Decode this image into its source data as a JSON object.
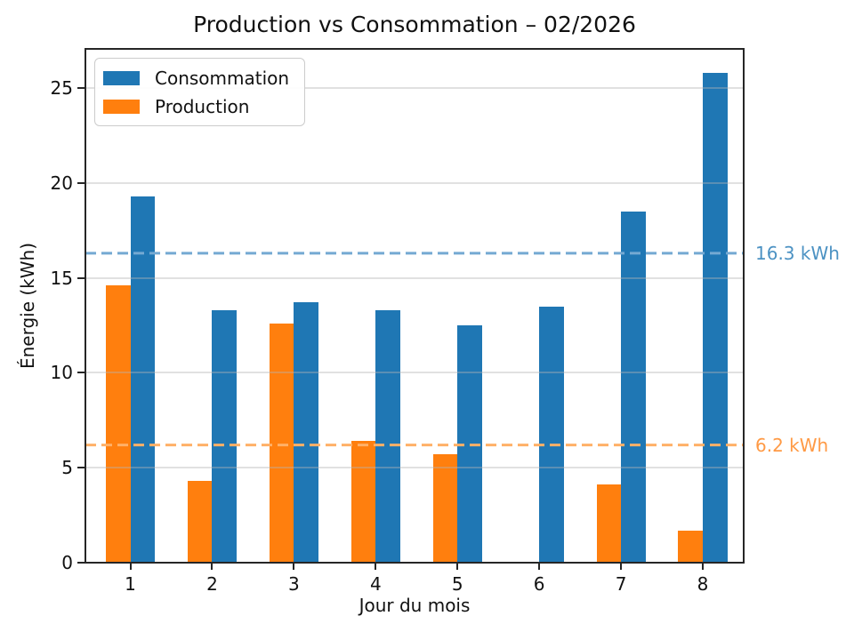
{
  "chart_data": {
    "type": "bar",
    "title": "Production vs Consommation – 02/2026",
    "xlabel": "Jour du mois",
    "ylabel": "Énergie (kWh)",
    "categories": [
      "1",
      "2",
      "3",
      "4",
      "5",
      "6",
      "7",
      "8"
    ],
    "series": [
      {
        "name": "Consommation",
        "color": "#1f77b4",
        "center_offset": 0.15,
        "values": [
          19.3,
          13.3,
          13.7,
          13.3,
          12.5,
          13.5,
          18.5,
          25.8
        ]
      },
      {
        "name": "Production",
        "color": "#ff7f0e",
        "center_offset": -0.15,
        "values": [
          14.6,
          4.3,
          12.6,
          6.4,
          5.7,
          0,
          4.1,
          1.7
        ]
      }
    ],
    "bar_width": 0.3,
    "ylim": [
      0,
      27.06
    ],
    "xlim": [
      0.45,
      8.5
    ],
    "yticks": [
      0,
      5,
      10,
      15,
      20,
      25
    ],
    "grid": "horizontal-above-bars",
    "legend_position": "upper-left",
    "mean_lines": [
      {
        "series": "Consommation",
        "value": 16.3,
        "label": "16.3 kWh",
        "line_color": "#74a9d2",
        "text_color": "#4c92c3",
        "style": "dashed"
      },
      {
        "series": "Production",
        "value": 6.2,
        "label": "6.2 kWh",
        "line_color": "#ffb067",
        "text_color": "#ff9a45",
        "style": "dashed"
      }
    ]
  }
}
